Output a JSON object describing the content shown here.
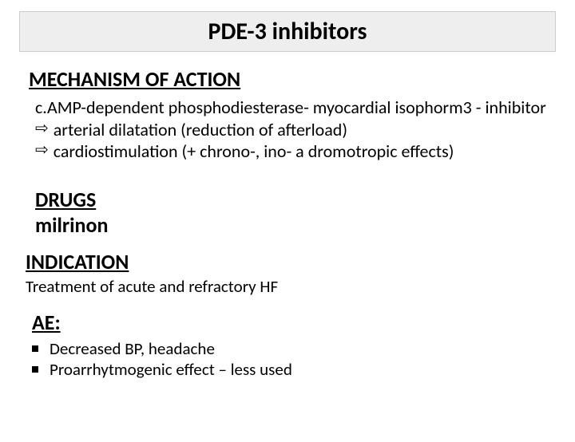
{
  "title": "PDE-3 inhibitors",
  "mechanism": {
    "heading": "MECHANISM OF ACTION",
    "line1": "c.AMP-dependent phosphodiesterase- myocardial isophorm3 - inhibitor",
    "arrow1": "arterial dilatation (reduction of afterload)",
    "arrow2": " cardiostimulation (+ chrono-, ino- a dromotropic effects)"
  },
  "drugs": {
    "heading": "DRUGS",
    "name": "milrinon"
  },
  "indication": {
    "heading": "INDICATION",
    "body": "Treatment of acute and refractory HF"
  },
  "ae": {
    "heading": "AE:",
    "items": [
      "Decreased BP, headache",
      "Proarrhytmogenic effect – less used"
    ]
  },
  "colors": {
    "title_bg": "#eeeeee",
    "title_border": "#cccccc",
    "text": "#000000",
    "background": "#ffffff"
  }
}
